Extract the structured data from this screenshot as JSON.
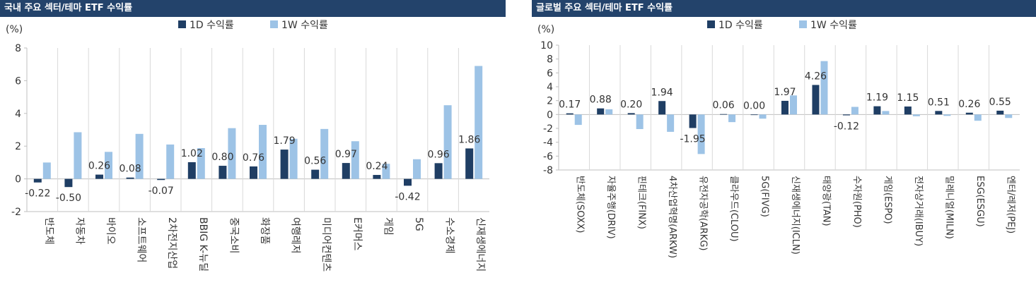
{
  "panels": [
    {
      "title": "국내 주요 섹터/테마 ETF 수익률",
      "chart_data": {
        "type": "bar",
        "unit_label": "(%)",
        "categories": [
          "반도체",
          "자동차",
          "바이오",
          "소프트웨어",
          "2차전지산업",
          "BBIG K-뉴딜",
          "중국소비",
          "화장품",
          "여행레저",
          "미디어컨텐츠",
          "E커머스",
          "게임",
          "5G",
          "수소경제",
          "신재생에너지"
        ],
        "series": [
          {
            "name": "1D 수익률",
            "color": "#1f3e64",
            "values": [
              -0.22,
              -0.5,
              0.26,
              0.08,
              -0.07,
              1.02,
              0.8,
              0.76,
              1.79,
              0.56,
              0.97,
              0.24,
              -0.42,
              0.96,
              1.86
            ]
          },
          {
            "name": "1W 수익률",
            "color": "#9dc3e6",
            "values": [
              1.0,
              2.85,
              1.65,
              2.75,
              2.1,
              1.88,
              3.1,
              3.3,
              2.45,
              3.05,
              2.3,
              0.92,
              1.2,
              4.5,
              6.9
            ]
          }
        ],
        "data_labels": [
          "-0.22",
          "-0.50",
          "0.26",
          "0.08",
          "-0.07",
          "1.02",
          "0.80",
          "0.76",
          "1.79",
          "0.56",
          "0.97",
          "0.24",
          "-0.42",
          "0.96",
          "1.86"
        ],
        "ylim": [
          -2,
          8
        ],
        "yticks": [
          -2,
          0,
          2,
          4,
          6,
          8
        ],
        "legend_position": "top"
      }
    },
    {
      "title": "글로벌 주요 섹터/테마 ETF 수익률",
      "chart_data": {
        "type": "bar",
        "unit_label": "(%)",
        "categories": [
          "반도체(SOXX)",
          "자율주행(DRIV)",
          "핀테크(FINX)",
          "4차산업혁명(ARKW)",
          "유전자공학(ARKG)",
          "클라우드(CLOU)",
          "5G(FIVG)",
          "신재생에너지(ICLN)",
          "태양광(TAN)",
          "수자원(PHO)",
          "게임(ESPO)",
          "전자상거래(IBUY)",
          "밀레니얼(MILN)",
          "ESG(ESGU)",
          "엔터/레저(PEJ)"
        ],
        "series": [
          {
            "name": "1D 수익률",
            "color": "#1f3e64",
            "values": [
              0.17,
              0.88,
              0.2,
              1.94,
              -1.95,
              0.06,
              0.0,
              1.97,
              4.26,
              -0.12,
              1.19,
              1.15,
              0.51,
              0.26,
              0.55
            ]
          },
          {
            "name": "1W 수익률",
            "color": "#9dc3e6",
            "values": [
              -1.5,
              0.75,
              -2.1,
              -2.5,
              -5.7,
              -1.1,
              -0.6,
              2.75,
              7.7,
              1.1,
              0.5,
              -0.25,
              -0.2,
              -0.9,
              -0.5
            ]
          }
        ],
        "data_labels": [
          "0.17",
          "0.88",
          "0.20",
          "1.94",
          "-1.95",
          "0.06",
          "0.00",
          "1.97",
          "4.26",
          "-0.12",
          "1.19",
          "1.15",
          "0.51",
          "0.26",
          "0.55"
        ],
        "ylim": [
          -8,
          10
        ],
        "yticks": [
          -8,
          -6,
          -4,
          -2,
          0,
          2,
          4,
          6,
          8,
          10
        ],
        "legend_position": "top"
      }
    }
  ]
}
